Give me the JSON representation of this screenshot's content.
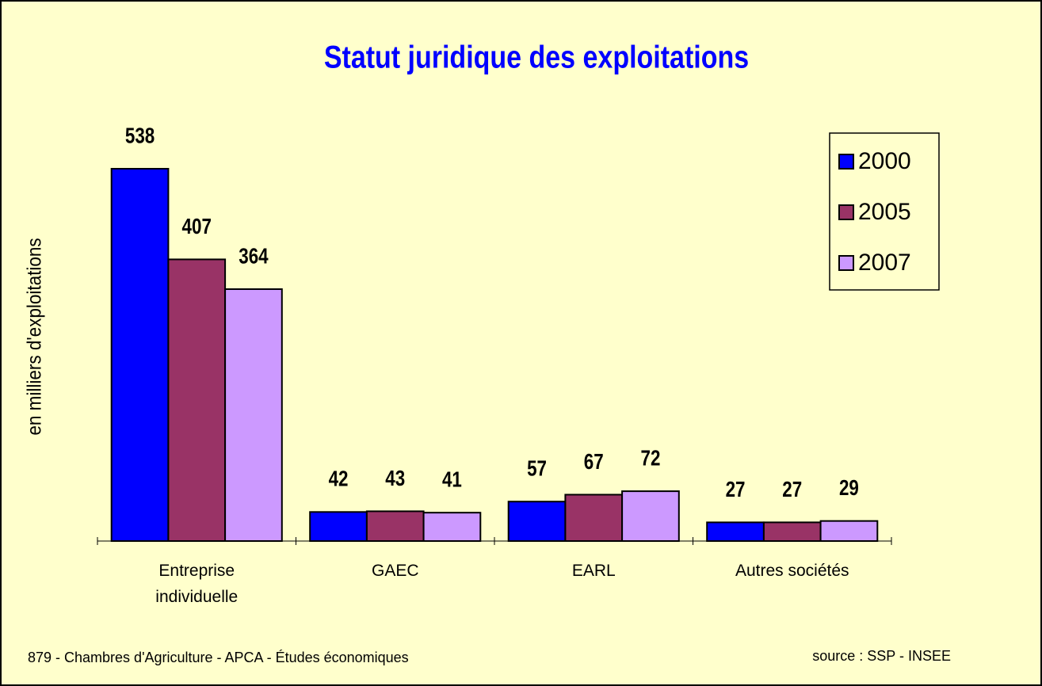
{
  "chart_data": {
    "type": "bar",
    "title": "Statut juridique des exploitations",
    "y_label": "en milliers d'exploitations",
    "categories": [
      "Entreprise individuelle",
      "GAEC",
      "EARL",
      "Autres sociétés"
    ],
    "series": [
      {
        "name": "2000",
        "color": "#0000ff",
        "values": [
          538,
          42,
          57,
          27
        ]
      },
      {
        "name": "2005",
        "color": "#993366",
        "values": [
          407,
          43,
          67,
          27
        ]
      },
      {
        "name": "2007",
        "color": "#cc99ff",
        "values": [
          364,
          41,
          72,
          29
        ]
      }
    ],
    "legend": "right",
    "footer_left": "879 - Chambres d'Agriculture - APCA - Études économiques",
    "footer_right": "source : SSP - INSEE"
  }
}
